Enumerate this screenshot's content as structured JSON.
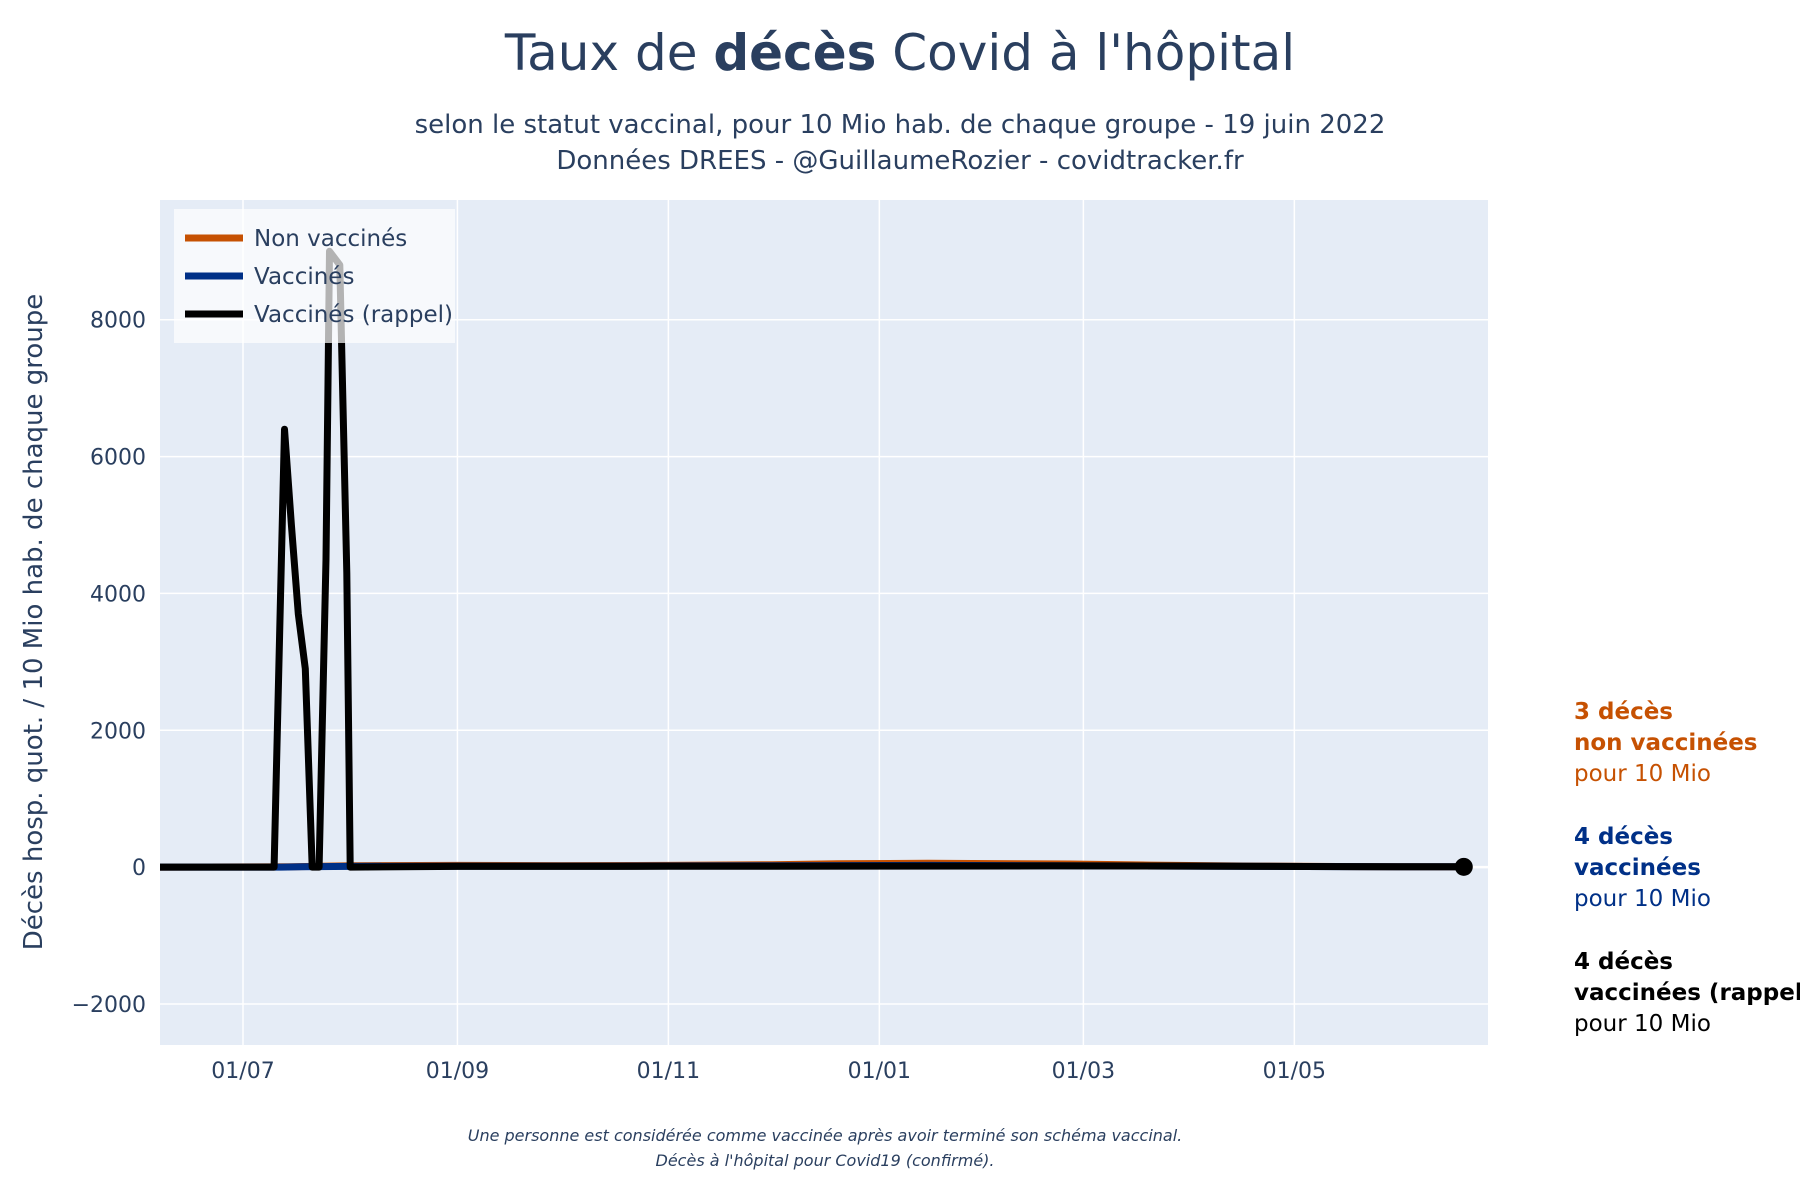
{
  "chart_data": {
    "type": "line",
    "title_prefix": "Taux de ",
    "title_bold": "décès",
    "title_suffix": " Covid à l'hôpital",
    "subtitle_lines": [
      "selon le statut vaccinal, pour 10 Mio hab. de chaque groupe - 19 juin 2022",
      "Données DREES - @GuillaumeRozier - covidtracker.fr"
    ],
    "ylabel": "Décès hosp. quot. / 10 Mio hab. de chaque groupe",
    "xlabel": "",
    "x_range": [
      "2021-06-07",
      "2022-06-26"
    ],
    "ylim": [
      -2600,
      9750
    ],
    "y_ticks": [
      -2000,
      0,
      2000,
      4000,
      6000,
      8000
    ],
    "x_ticks": [
      {
        "date": "2021-07-01",
        "label": "01/07"
      },
      {
        "date": "2021-09-01",
        "label": "01/09"
      },
      {
        "date": "2021-11-01",
        "label": "01/11"
      },
      {
        "date": "2022-01-01",
        "label": "01/01"
      },
      {
        "date": "2022-03-01",
        "label": "01/03"
      },
      {
        "date": "2022-05-01",
        "label": "01/05"
      }
    ],
    "grid": true,
    "plot_bg": "#e5ecf6",
    "legend_position": "top-left",
    "series": [
      {
        "name": "Non vaccinés",
        "color": "#c65102",
        "points": [
          [
            "2021-06-07",
            0
          ],
          [
            "2021-07-15",
            5
          ],
          [
            "2021-08-01",
            20
          ],
          [
            "2021-09-01",
            25
          ],
          [
            "2021-10-01",
            22
          ],
          [
            "2021-11-01",
            25
          ],
          [
            "2021-12-01",
            35
          ],
          [
            "2021-12-20",
            50
          ],
          [
            "2022-01-15",
            55
          ],
          [
            "2022-02-10",
            50
          ],
          [
            "2022-02-25",
            45
          ],
          [
            "2022-03-20",
            30
          ],
          [
            "2022-04-20",
            15
          ],
          [
            "2022-05-20",
            8
          ],
          [
            "2022-06-19",
            3
          ]
        ]
      },
      {
        "name": "Vaccinés",
        "color": "#003087",
        "points": [
          [
            "2021-06-07",
            0
          ],
          [
            "2021-07-12",
            0
          ],
          [
            "2021-07-18",
            5
          ],
          [
            "2021-08-01",
            10
          ],
          [
            "2021-09-01",
            15
          ],
          [
            "2021-10-15",
            15
          ],
          [
            "2021-12-01",
            20
          ],
          [
            "2022-01-15",
            25
          ],
          [
            "2022-02-20",
            20
          ],
          [
            "2022-04-01",
            15
          ],
          [
            "2022-05-15",
            8
          ],
          [
            "2022-06-19",
            4
          ]
        ]
      },
      {
        "name": "Vaccinés (rappel)",
        "color": "#000000",
        "points": [
          [
            "2021-06-07",
            0
          ],
          [
            "2021-07-10",
            0
          ],
          [
            "2021-07-13",
            6400
          ],
          [
            "2021-07-15",
            5000
          ],
          [
            "2021-07-17",
            3700
          ],
          [
            "2021-07-19",
            2900
          ],
          [
            "2021-07-21",
            0
          ],
          [
            "2021-07-23",
            0
          ],
          [
            "2021-07-25",
            4500
          ],
          [
            "2021-07-26",
            9000
          ],
          [
            "2021-07-29",
            8800
          ],
          [
            "2021-07-31",
            4300
          ],
          [
            "2021-08-01",
            0
          ],
          [
            "2021-09-01",
            10
          ],
          [
            "2021-11-01",
            12
          ],
          [
            "2022-01-01",
            15
          ],
          [
            "2022-02-20",
            18
          ],
          [
            "2022-04-01",
            14
          ],
          [
            "2022-05-15",
            8
          ],
          [
            "2022-06-19",
            4
          ]
        ]
      }
    ],
    "end_marker": {
      "date": "2022-06-19",
      "value": 4,
      "color": "#000000"
    },
    "annotations": [
      {
        "bold_lines": [
          "3 décès",
          "non vaccinées"
        ],
        "regular": "pour 10 Mio",
        "color": "#c65102"
      },
      {
        "bold_lines": [
          "4 décès",
          "vaccinées"
        ],
        "regular": "pour 10 Mio",
        "color": "#003087"
      },
      {
        "bold_lines": [
          "4 décès",
          "vaccinées (rappel)"
        ],
        "regular": "pour 10 Mio",
        "color": "#000000"
      }
    ],
    "footnotes": [
      "Une personne est considérée comme vaccinée après avoir terminé son schéma vaccinal.",
      "Décès à l'hôpital pour Covid19 (confirmé)."
    ]
  }
}
